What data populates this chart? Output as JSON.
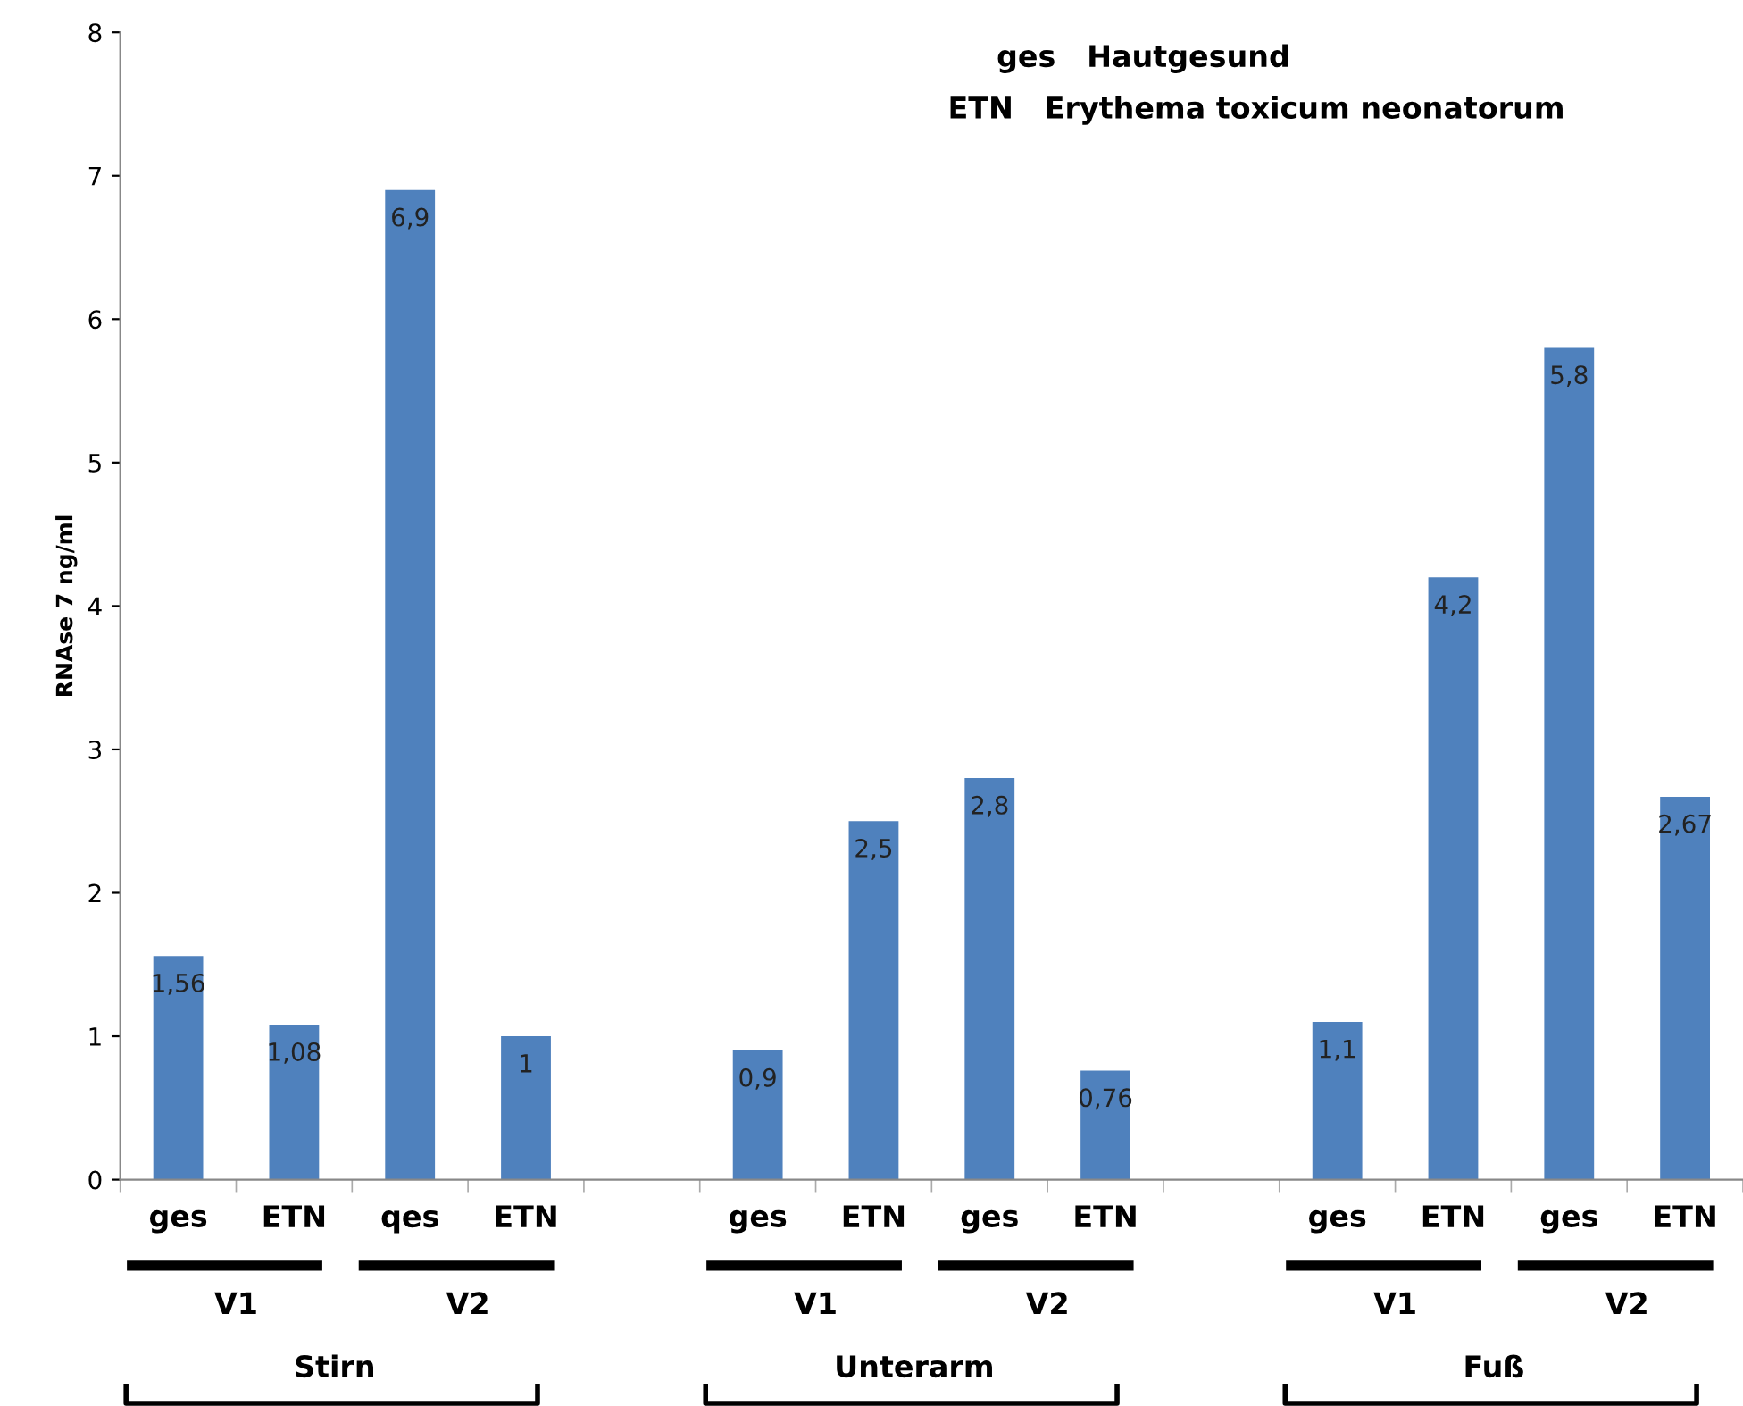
{
  "chart_data": {
    "type": "bar",
    "ylabel": "RNAse 7 ng/ml",
    "categories": [
      "ges",
      "ETN",
      "qes",
      "ETN",
      null,
      "ges",
      "ETN",
      "ges",
      "ETN",
      null,
      "ges",
      "ETN",
      "ges",
      "ETN"
    ],
    "values": [
      1.56,
      1.08,
      6.9,
      1,
      null,
      0.9,
      2.5,
      2.8,
      0.76,
      null,
      1.1,
      4.2,
      5.8,
      2.67
    ],
    "value_labels": [
      "1,56",
      "1,08",
      "6,9",
      "1",
      null,
      "0,9",
      "2,5",
      "2,8",
      "0,76",
      null,
      "1,1",
      "4,2",
      "5,8",
      "2,67"
    ],
    "color": "#4f81bd",
    "ylim": [
      0,
      8
    ],
    "yticks": [
      0,
      1,
      2,
      3,
      4,
      5,
      6,
      7,
      8
    ],
    "grid": false,
    "annotations": [
      "ges   Hautgesund",
      "ETN   Erythema toxicum neonatorum",
      "V1",
      "V2",
      "V1",
      "V2",
      "V1",
      "V2",
      "Stirn",
      "Unterarm",
      "Fuß"
    ]
  }
}
